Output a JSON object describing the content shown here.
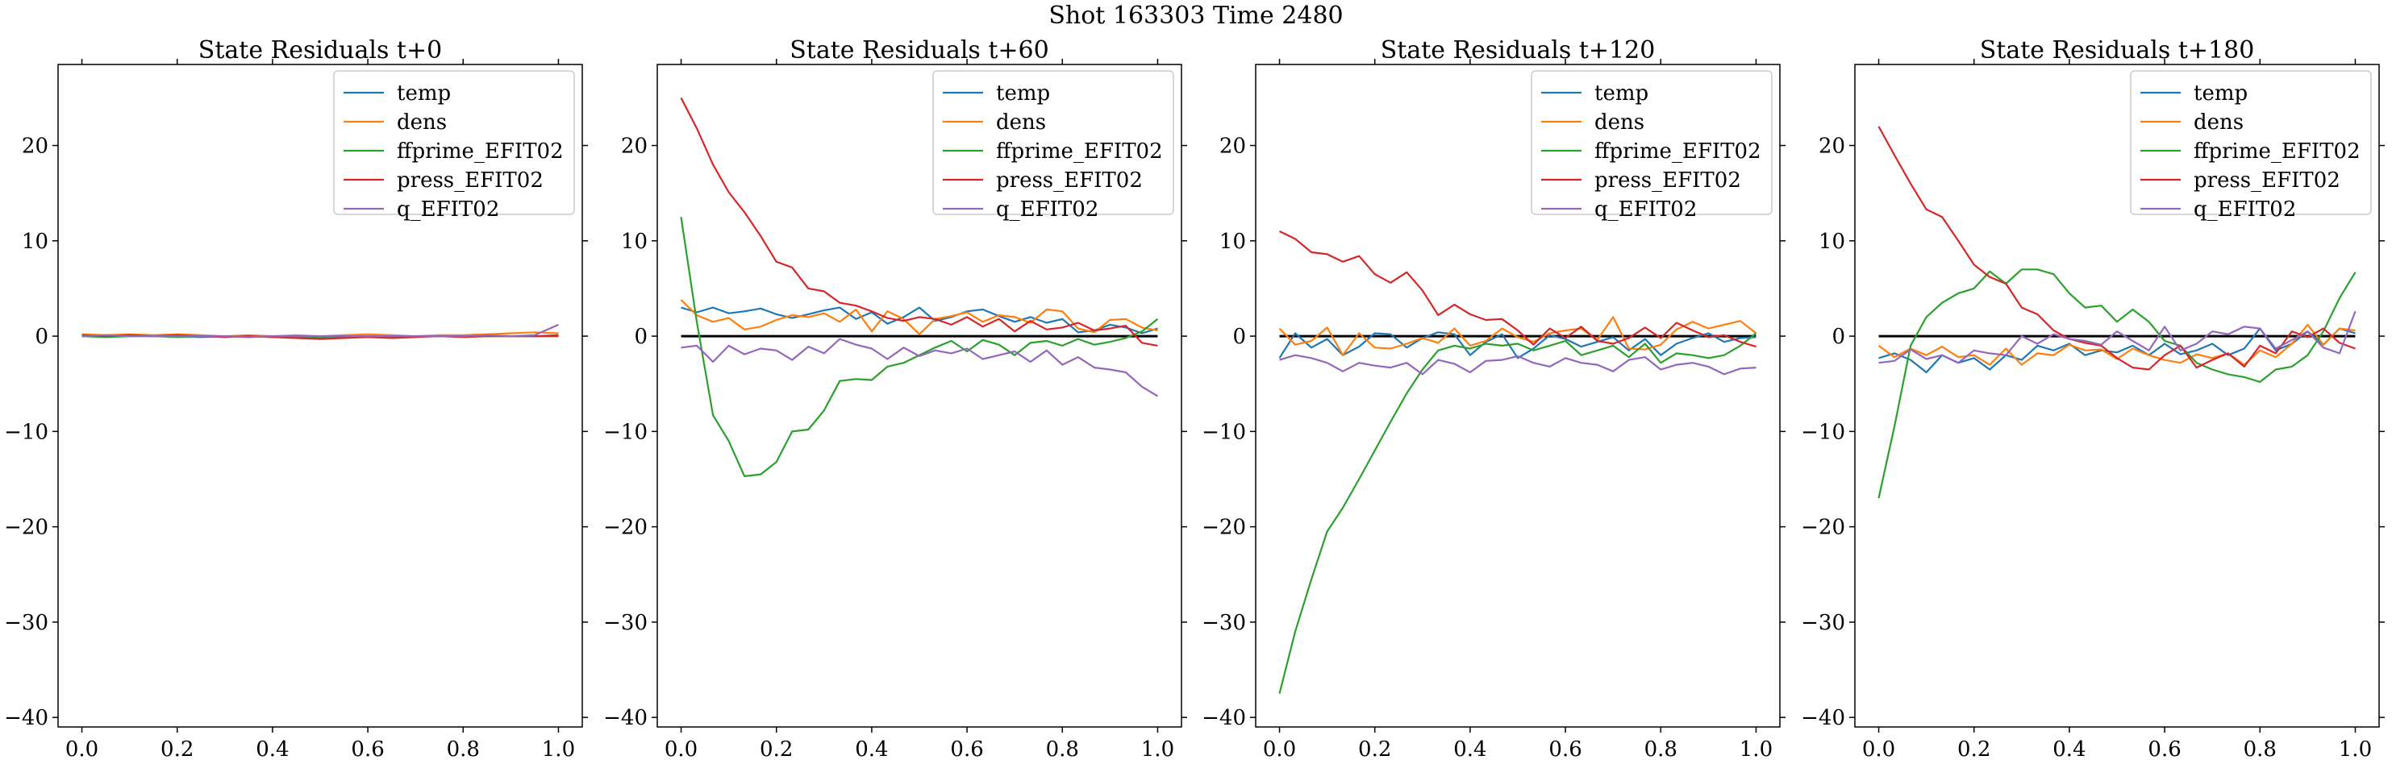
{
  "figure": {
    "suptitle": "Shot 163303   Time 2480"
  },
  "colors": {
    "temp": "#1f77b4",
    "dens": "#ff7f0e",
    "ffprime_EFIT02": "#2ca02c",
    "press_EFIT02": "#d62728",
    "q_EFIT02": "#9467bd",
    "zero_line": "#000000"
  },
  "chart_data": [
    {
      "type": "line",
      "title": "State Residuals t+0",
      "xlabel": "",
      "ylabel": "",
      "xlim": [
        -0.05,
        1.05
      ],
      "ylim": [
        -41,
        28.5
      ],
      "xticks": [
        "0.0",
        "0.2",
        "0.4",
        "0.6",
        "0.8",
        "1.0"
      ],
      "yticks": [
        "20",
        "10",
        "0",
        "−10",
        "−20",
        "−30",
        "−40"
      ],
      "legend": "top-right",
      "zero_line": false,
      "x": [
        0.0,
        0.05,
        0.1,
        0.15,
        0.2,
        0.25,
        0.3,
        0.35,
        0.4,
        0.45,
        0.5,
        0.55,
        0.6,
        0.65,
        0.7,
        0.75,
        0.8,
        0.85,
        0.9,
        0.95,
        1.0
      ],
      "series": [
        {
          "name": "temp",
          "values": [
            0.0,
            0.1,
            0.0,
            0.1,
            0.0,
            -0.1,
            0.0,
            0.0,
            -0.1,
            0.0,
            -0.2,
            -0.1,
            0.0,
            -0.1,
            0.0,
            0.0,
            0.0,
            0.1,
            0.0,
            0.0,
            0.1
          ]
        },
        {
          "name": "dens",
          "values": [
            0.2,
            0.1,
            0.2,
            0.1,
            0.2,
            0.1,
            0.0,
            0.1,
            0.0,
            0.1,
            0.0,
            0.1,
            0.2,
            0.1,
            0.0,
            0.1,
            0.1,
            0.2,
            0.3,
            0.4,
            0.3
          ]
        },
        {
          "name": "ffprime_EFIT02",
          "values": [
            0.0,
            -0.1,
            0.0,
            0.0,
            -0.1,
            0.0,
            0.0,
            -0.1,
            0.0,
            0.0,
            -0.1,
            0.0,
            0.0,
            -0.1,
            0.0,
            0.0,
            0.0,
            0.0,
            0.0,
            0.0,
            0.0
          ]
        },
        {
          "name": "press_EFIT02",
          "values": [
            0.1,
            0.0,
            0.1,
            0.0,
            0.1,
            0.0,
            -0.1,
            0.0,
            -0.1,
            -0.2,
            -0.3,
            -0.2,
            -0.1,
            -0.2,
            -0.1,
            0.0,
            -0.1,
            0.0,
            0.0,
            0.0,
            0.0
          ]
        },
        {
          "name": "q_EFIT02",
          "values": [
            0.0,
            0.1,
            0.0,
            0.0,
            0.0,
            0.0,
            0.0,
            -0.1,
            0.0,
            0.0,
            0.0,
            0.0,
            0.0,
            0.0,
            0.0,
            0.0,
            0.0,
            0.1,
            0.0,
            0.1,
            1.2
          ]
        }
      ]
    },
    {
      "type": "line",
      "title": "State Residuals t+60",
      "xlabel": "",
      "ylabel": "",
      "xlim": [
        -0.05,
        1.05
      ],
      "ylim": [
        -41,
        28.5
      ],
      "xticks": [
        "0.0",
        "0.2",
        "0.4",
        "0.6",
        "0.8",
        "1.0"
      ],
      "yticks": [
        "20",
        "10",
        "0",
        "−10",
        "−20",
        "−30",
        "−40"
      ],
      "legend": "top-right",
      "zero_line": true,
      "x": [
        0.0,
        0.033,
        0.067,
        0.1,
        0.133,
        0.167,
        0.2,
        0.233,
        0.267,
        0.3,
        0.333,
        0.367,
        0.4,
        0.433,
        0.467,
        0.5,
        0.533,
        0.567,
        0.6,
        0.633,
        0.667,
        0.7,
        0.733,
        0.767,
        0.8,
        0.833,
        0.867,
        0.9,
        0.933,
        0.967,
        1.0
      ],
      "series": [
        {
          "name": "temp",
          "values": [
            3.0,
            2.5,
            3.0,
            2.4,
            2.6,
            2.9,
            2.3,
            1.9,
            2.3,
            2.7,
            3.0,
            1.8,
            2.5,
            1.3,
            2.0,
            3.0,
            1.6,
            2.0,
            2.6,
            2.8,
            2.1,
            1.5,
            2.0,
            1.4,
            1.8,
            0.4,
            0.6,
            1.2,
            0.9,
            0.3,
            0.8
          ]
        },
        {
          "name": "dens",
          "values": [
            3.8,
            2.2,
            1.5,
            1.9,
            0.7,
            1.0,
            1.7,
            2.2,
            2.0,
            2.4,
            1.5,
            2.8,
            0.5,
            2.6,
            1.8,
            0.2,
            1.8,
            2.1,
            2.5,
            1.5,
            2.2,
            2.0,
            1.4,
            2.8,
            2.6,
            0.8,
            0.4,
            1.7,
            1.8,
            0.9,
            0.6
          ]
        },
        {
          "name": "ffprime_EFIT02",
          "values": [
            12.5,
            1.5,
            -8.3,
            -11.0,
            -14.7,
            -14.5,
            -13.2,
            -10.0,
            -9.8,
            -7.8,
            -4.7,
            -4.5,
            -4.6,
            -3.2,
            -2.8,
            -2.0,
            -1.2,
            -0.5,
            -1.6,
            -0.4,
            -0.9,
            -2.0,
            -0.7,
            -0.5,
            -1.0,
            -0.3,
            -0.9,
            -0.6,
            -0.2,
            0.5,
            1.8
          ]
        },
        {
          "name": "press_EFIT02",
          "values": [
            25.0,
            21.8,
            18.0,
            15.1,
            13.0,
            10.5,
            7.8,
            7.2,
            5.0,
            4.7,
            3.5,
            3.2,
            2.6,
            1.9,
            1.6,
            2.0,
            1.8,
            1.2,
            2.0,
            1.0,
            1.8,
            0.5,
            1.6,
            0.7,
            0.9,
            1.4,
            0.6,
            0.8,
            1.1,
            -0.7,
            -1.0
          ]
        },
        {
          "name": "q_EFIT02",
          "values": [
            -1.2,
            -1.0,
            -2.7,
            -1.0,
            -1.9,
            -1.3,
            -1.5,
            -2.5,
            -1.1,
            -1.8,
            -0.3,
            -0.9,
            -1.3,
            -2.4,
            -1.2,
            -2.1,
            -1.5,
            -1.8,
            -1.3,
            -2.4,
            -2.0,
            -1.6,
            -2.7,
            -1.5,
            -3.0,
            -2.2,
            -3.3,
            -3.5,
            -3.8,
            -5.3,
            -6.3
          ]
        }
      ]
    },
    {
      "type": "line",
      "title": "State Residuals t+120",
      "xlabel": "",
      "ylabel": "",
      "xlim": [
        -0.05,
        1.05
      ],
      "ylim": [
        -41,
        28.5
      ],
      "xticks": [
        "0.0",
        "0.2",
        "0.4",
        "0.6",
        "0.8",
        "1.0"
      ],
      "yticks": [
        "20",
        "10",
        "0",
        "−10",
        "−20",
        "−30",
        "−40"
      ],
      "legend": "top-right",
      "zero_line": true,
      "x": [
        0.0,
        0.033,
        0.067,
        0.1,
        0.133,
        0.167,
        0.2,
        0.233,
        0.267,
        0.3,
        0.333,
        0.367,
        0.4,
        0.433,
        0.467,
        0.5,
        0.533,
        0.567,
        0.6,
        0.633,
        0.667,
        0.7,
        0.733,
        0.767,
        0.8,
        0.833,
        0.867,
        0.9,
        0.933,
        0.967,
        1.0
      ],
      "series": [
        {
          "name": "temp",
          "values": [
            -2.3,
            0.3,
            -1.2,
            -0.3,
            -2.0,
            -1.1,
            0.3,
            0.2,
            -1.2,
            -0.2,
            0.4,
            0.2,
            -2.0,
            -0.6,
            0.2,
            -2.3,
            -1.3,
            0.1,
            -0.3,
            -1.1,
            -0.6,
            -0.1,
            -1.5,
            -0.3,
            -2.0,
            -0.8,
            -0.2,
            0.3,
            -0.6,
            -0.2,
            -0.1
          ]
        },
        {
          "name": "dens",
          "values": [
            0.8,
            -0.9,
            -0.5,
            0.9,
            -2.0,
            0.3,
            -1.2,
            -1.3,
            -0.8,
            -0.2,
            -0.7,
            0.8,
            -1.0,
            -0.5,
            0.8,
            -0.1,
            -0.6,
            0.3,
            0.6,
            0.8,
            -0.4,
            2.0,
            -1.3,
            -1.4,
            -0.9,
            0.7,
            1.5,
            0.8,
            1.2,
            1.6,
            0.3
          ]
        },
        {
          "name": "ffprime_EFIT02",
          "values": [
            -37.5,
            -31.0,
            -25.5,
            -20.5,
            -18.0,
            -15.0,
            -12.0,
            -9.0,
            -6.0,
            -3.5,
            -1.5,
            -1.0,
            -1.3,
            -0.8,
            -1.0,
            -0.8,
            -1.5,
            -1.0,
            -0.5,
            -2.0,
            -1.5,
            -1.0,
            -2.2,
            -0.8,
            -2.8,
            -1.8,
            -2.0,
            -2.3,
            -2.0,
            -1.0,
            0.3
          ]
        },
        {
          "name": "press_EFIT02",
          "values": [
            11.0,
            10.2,
            8.8,
            8.6,
            7.8,
            8.4,
            6.5,
            5.6,
            6.7,
            4.8,
            2.2,
            3.3,
            2.3,
            1.7,
            1.8,
            0.6,
            -0.9,
            0.8,
            -0.2,
            1.0,
            -0.5,
            -0.8,
            -0.2,
            0.9,
            -0.2,
            1.4,
            0.6,
            -0.1,
            0.1,
            -0.6,
            -1.1
          ]
        },
        {
          "name": "q_EFIT02",
          "values": [
            -2.5,
            -2.0,
            -2.3,
            -2.8,
            -3.7,
            -2.8,
            -3.1,
            -3.3,
            -2.8,
            -4.0,
            -2.5,
            -2.9,
            -3.8,
            -2.6,
            -2.5,
            -2.1,
            -2.8,
            -3.2,
            -2.3,
            -2.8,
            -3.0,
            -3.7,
            -2.5,
            -2.2,
            -3.5,
            -3.0,
            -2.8,
            -3.2,
            -4.0,
            -3.4,
            -3.3
          ]
        }
      ]
    },
    {
      "type": "line",
      "title": "State Residuals t+180",
      "xlabel": "",
      "ylabel": "",
      "xlim": [
        -0.05,
        1.05
      ],
      "ylim": [
        -41,
        28.5
      ],
      "xticks": [
        "0.0",
        "0.2",
        "0.4",
        "0.6",
        "0.8",
        "1.0"
      ],
      "yticks": [
        "20",
        "10",
        "0",
        "−10",
        "−20",
        "−30",
        "−40"
      ],
      "legend": "top-right",
      "zero_line": true,
      "x": [
        0.0,
        0.033,
        0.067,
        0.1,
        0.133,
        0.167,
        0.2,
        0.233,
        0.267,
        0.3,
        0.333,
        0.367,
        0.4,
        0.433,
        0.467,
        0.5,
        0.533,
        0.567,
        0.6,
        0.633,
        0.667,
        0.7,
        0.733,
        0.767,
        0.8,
        0.833,
        0.867,
        0.9,
        0.933,
        0.967,
        1.0
      ],
      "series": [
        {
          "name": "temp",
          "values": [
            -2.3,
            -1.8,
            -2.5,
            -3.8,
            -2.0,
            -2.8,
            -2.3,
            -3.5,
            -2.0,
            -2.5,
            -1.0,
            -1.5,
            -0.8,
            -2.0,
            -1.5,
            -1.7,
            -1.0,
            -2.0,
            -0.8,
            -1.9,
            -1.5,
            -0.8,
            -2.0,
            -1.3,
            0.8,
            -1.5,
            -0.8,
            0.5,
            -0.9,
            0.8,
            0.3
          ]
        },
        {
          "name": "dens",
          "values": [
            -1.0,
            -2.2,
            -1.3,
            -2.0,
            -1.1,
            -2.2,
            -2.0,
            -3.0,
            -1.3,
            -3.0,
            -1.8,
            -2.0,
            -0.9,
            -1.5,
            -1.4,
            -2.4,
            -1.3,
            -2.0,
            -2.5,
            -2.8,
            -1.9,
            -2.3,
            -1.8,
            -3.0,
            -1.5,
            -2.2,
            -0.8,
            1.2,
            -0.9,
            0.8,
            0.6
          ]
        },
        {
          "name": "ffprime_EFIT02",
          "values": [
            -17.0,
            -9.5,
            -1.0,
            2.0,
            3.5,
            4.5,
            5.0,
            6.8,
            5.5,
            7.0,
            7.0,
            6.5,
            4.5,
            3.0,
            3.2,
            1.5,
            2.8,
            1.5,
            -0.5,
            -1.0,
            -2.8,
            -3.5,
            -4.0,
            -4.3,
            -4.8,
            -3.5,
            -3.2,
            -2.0,
            0.5,
            4.0,
            6.7
          ]
        },
        {
          "name": "press_EFIT02",
          "values": [
            22.0,
            19.0,
            16.0,
            13.3,
            12.5,
            10.0,
            7.5,
            6.2,
            5.5,
            3.0,
            2.3,
            0.6,
            -0.3,
            -0.7,
            -1.0,
            -2.3,
            -3.3,
            -3.5,
            -2.0,
            -1.0,
            -3.3,
            -2.5,
            -1.8,
            -3.2,
            -1.0,
            -1.8,
            0.5,
            -0.1,
            0.8,
            -0.7,
            -1.3
          ]
        },
        {
          "name": "q_EFIT02",
          "values": [
            -2.8,
            -2.6,
            -1.4,
            -2.4,
            -2.0,
            -2.8,
            -1.5,
            -1.8,
            -2.0,
            0.0,
            -0.8,
            0.2,
            -0.3,
            -0.5,
            -0.9,
            0.5,
            -0.5,
            -1.5,
            1.0,
            -1.5,
            -0.8,
            0.5,
            0.2,
            1.0,
            0.8,
            -1.3,
            -0.4,
            0.5,
            -1.2,
            -1.8,
            2.6
          ]
        }
      ]
    }
  ]
}
